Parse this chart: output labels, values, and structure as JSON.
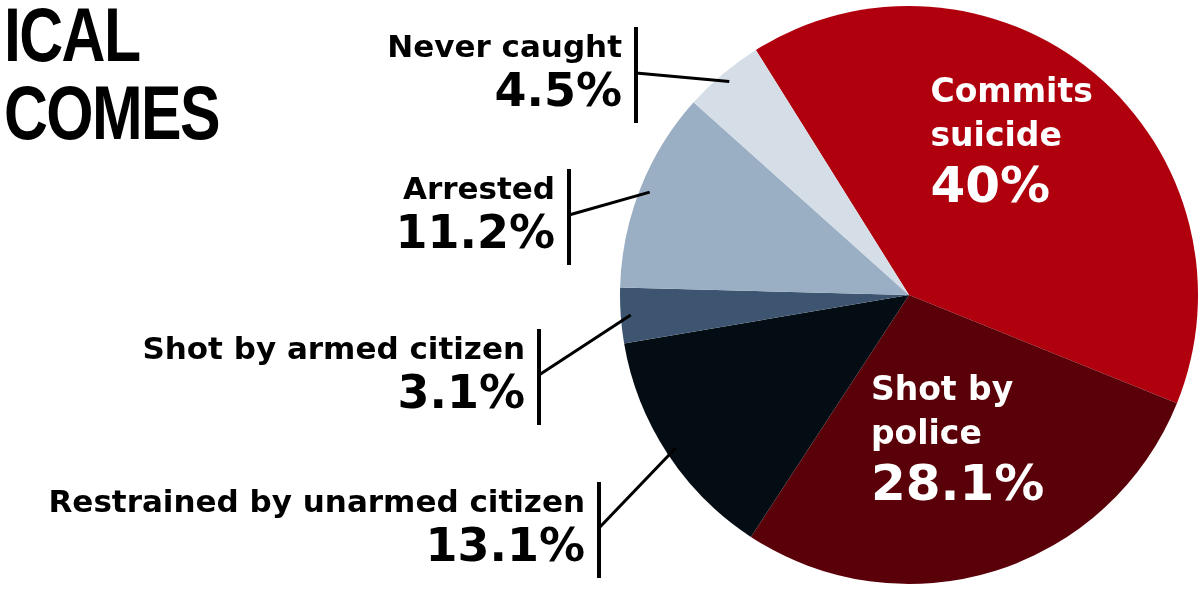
{
  "chart_data": {
    "type": "pie",
    "title": "ICAL\nCOMES",
    "categories": [
      "Commits suicide",
      "Shot by police",
      "Restrained by unarmed citizen",
      "Shot by armed citizen",
      "Arrested",
      "Never caught"
    ],
    "values": [
      40,
      28.1,
      13.1,
      3.1,
      11.2,
      4.5
    ],
    "value_labels": [
      "40%",
      "28.1%",
      "13.1%",
      "3.1%",
      "11.2%",
      "4.5%"
    ],
    "colors": [
      "#b0000e",
      "#5a0008",
      "#050d14",
      "#3d5570",
      "#9aafc4",
      "#d5dde6"
    ],
    "legend": false
  }
}
